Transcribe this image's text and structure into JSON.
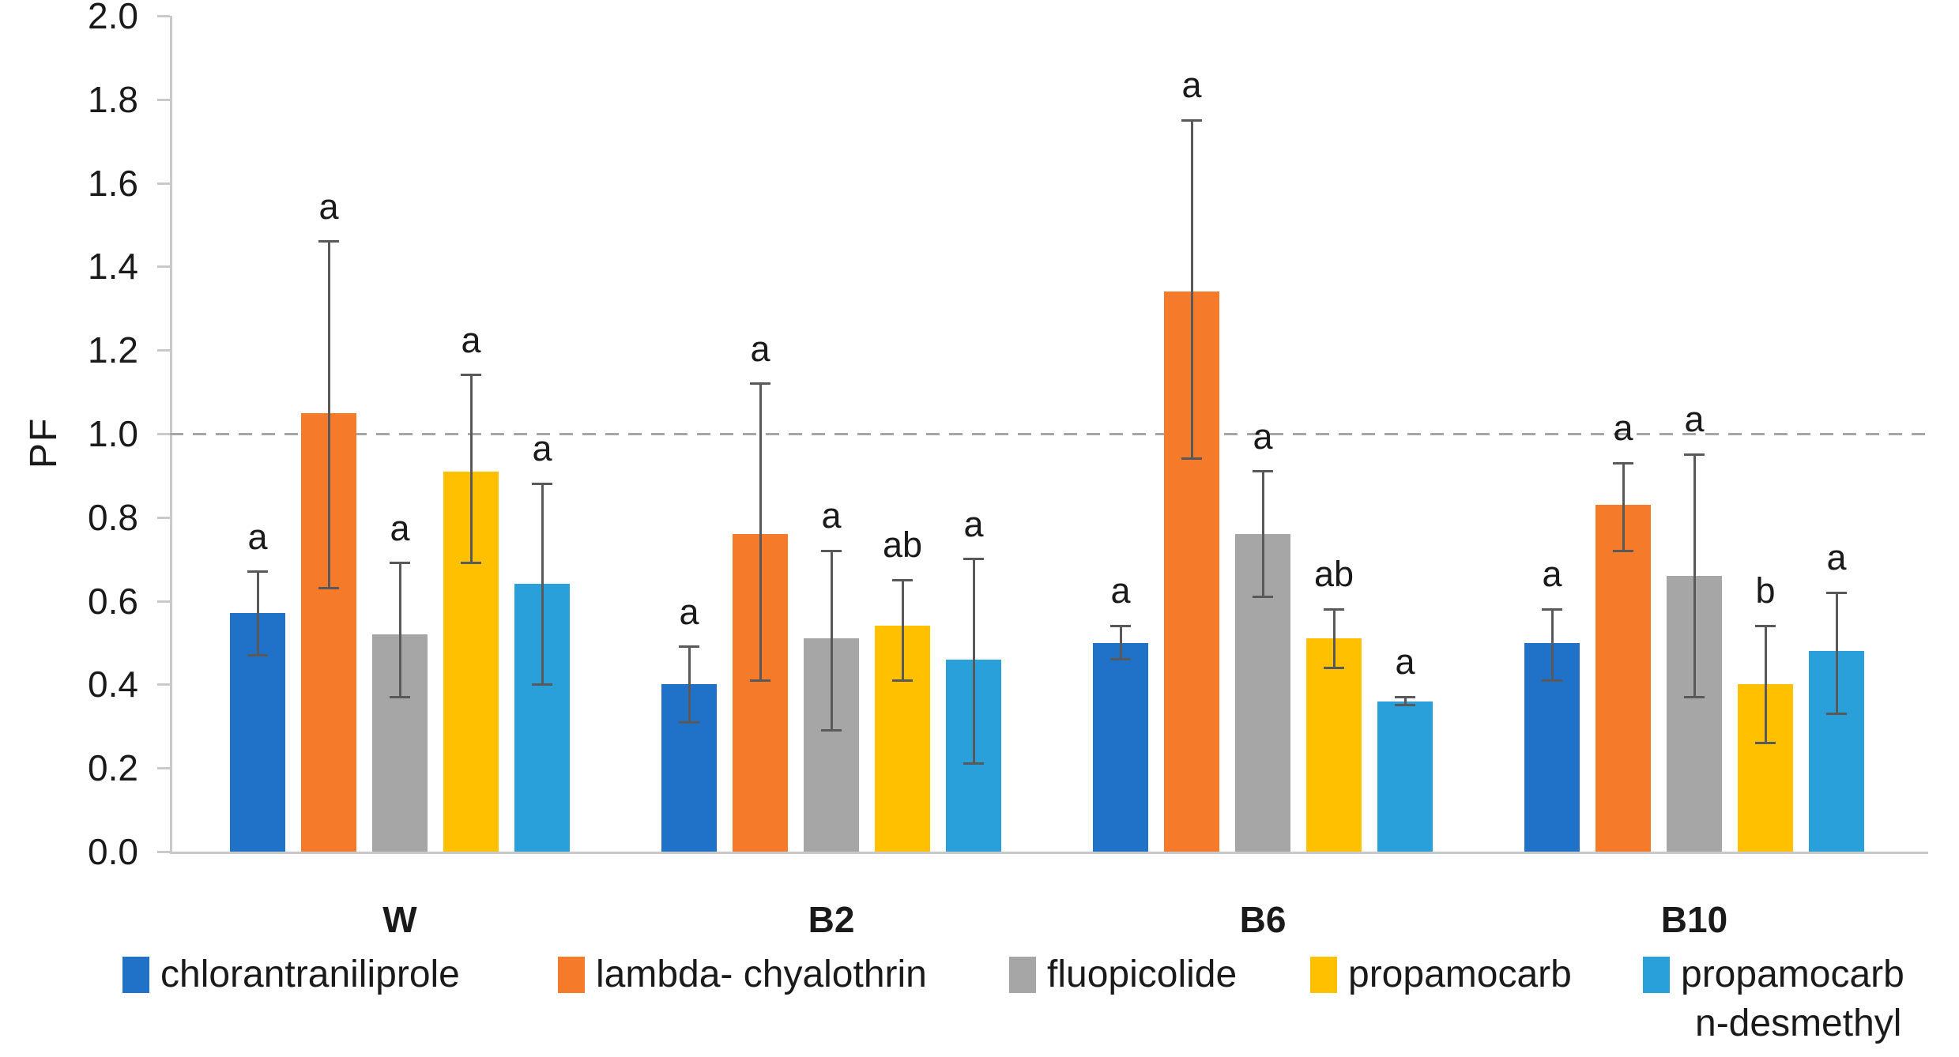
{
  "chart_data": {
    "type": "bar",
    "title": "",
    "ylabel": "PF",
    "xlabel": "",
    "ylim": [
      0,
      2.0
    ],
    "ytick_step": 0.2,
    "ytick_labels": [
      "0.0",
      "0.2",
      "0.4",
      "0.6",
      "0.8",
      "1.0",
      "1.2",
      "1.4",
      "1.6",
      "1.8",
      "2.0"
    ],
    "grid": false,
    "legend_position": "bottom",
    "reference_line": {
      "y": 1.0,
      "style": "dashed",
      "color": "#A6A6A6"
    },
    "axis_color": "#C9C9C9",
    "error_bar_color": "#595959",
    "text_color": "#1a1a1a",
    "categories": [
      "W",
      "B2",
      "B6",
      "B10"
    ],
    "series": [
      {
        "name": "chlorantraniliprole",
        "legend_lines": [
          "chlorantraniliprole"
        ],
        "color": "#1F72C8",
        "values": [
          0.57,
          0.4,
          0.5,
          0.5
        ],
        "err_low": [
          0.47,
          0.31,
          0.46,
          0.41
        ],
        "err_high": [
          0.67,
          0.49,
          0.54,
          0.58
        ],
        "letters": [
          "a",
          "a",
          "a",
          "a"
        ]
      },
      {
        "name": "lambda- chyalothrin",
        "legend_lines": [
          "lambda- chyalothrin"
        ],
        "color": "#F57B2A",
        "values": [
          1.05,
          0.76,
          1.34,
          0.83
        ],
        "err_low": [
          0.63,
          0.41,
          0.94,
          0.72
        ],
        "err_high": [
          1.46,
          1.12,
          1.75,
          0.93
        ],
        "letters": [
          "a",
          "a",
          "a",
          "a"
        ]
      },
      {
        "name": "fluopicolide",
        "legend_lines": [
          "fluopicolide"
        ],
        "color": "#A6A6A6",
        "values": [
          0.52,
          0.51,
          0.76,
          0.66
        ],
        "err_low": [
          0.37,
          0.29,
          0.61,
          0.37
        ],
        "err_high": [
          0.69,
          0.72,
          0.91,
          0.95
        ],
        "letters": [
          "a",
          "a",
          "a",
          "a"
        ]
      },
      {
        "name": "propamocarb",
        "legend_lines": [
          "propamocarb"
        ],
        "color": "#FFC000",
        "values": [
          0.91,
          0.54,
          0.51,
          0.4
        ],
        "err_low": [
          0.69,
          0.41,
          0.44,
          0.26
        ],
        "err_high": [
          1.14,
          0.65,
          0.58,
          0.54
        ],
        "letters": [
          "a",
          "ab",
          "ab",
          "b"
        ]
      },
      {
        "name": "propamocarb n-desmethyl",
        "legend_lines": [
          "propamocarb",
          "n-desmethyl"
        ],
        "color": "#29A0DA",
        "values": [
          0.64,
          0.46,
          0.36,
          0.48
        ],
        "err_low": [
          0.4,
          0.21,
          0.35,
          0.33
        ],
        "err_high": [
          0.88,
          0.7,
          0.37,
          0.62
        ],
        "letters": [
          "a",
          "a",
          "a",
          "a"
        ]
      }
    ]
  }
}
